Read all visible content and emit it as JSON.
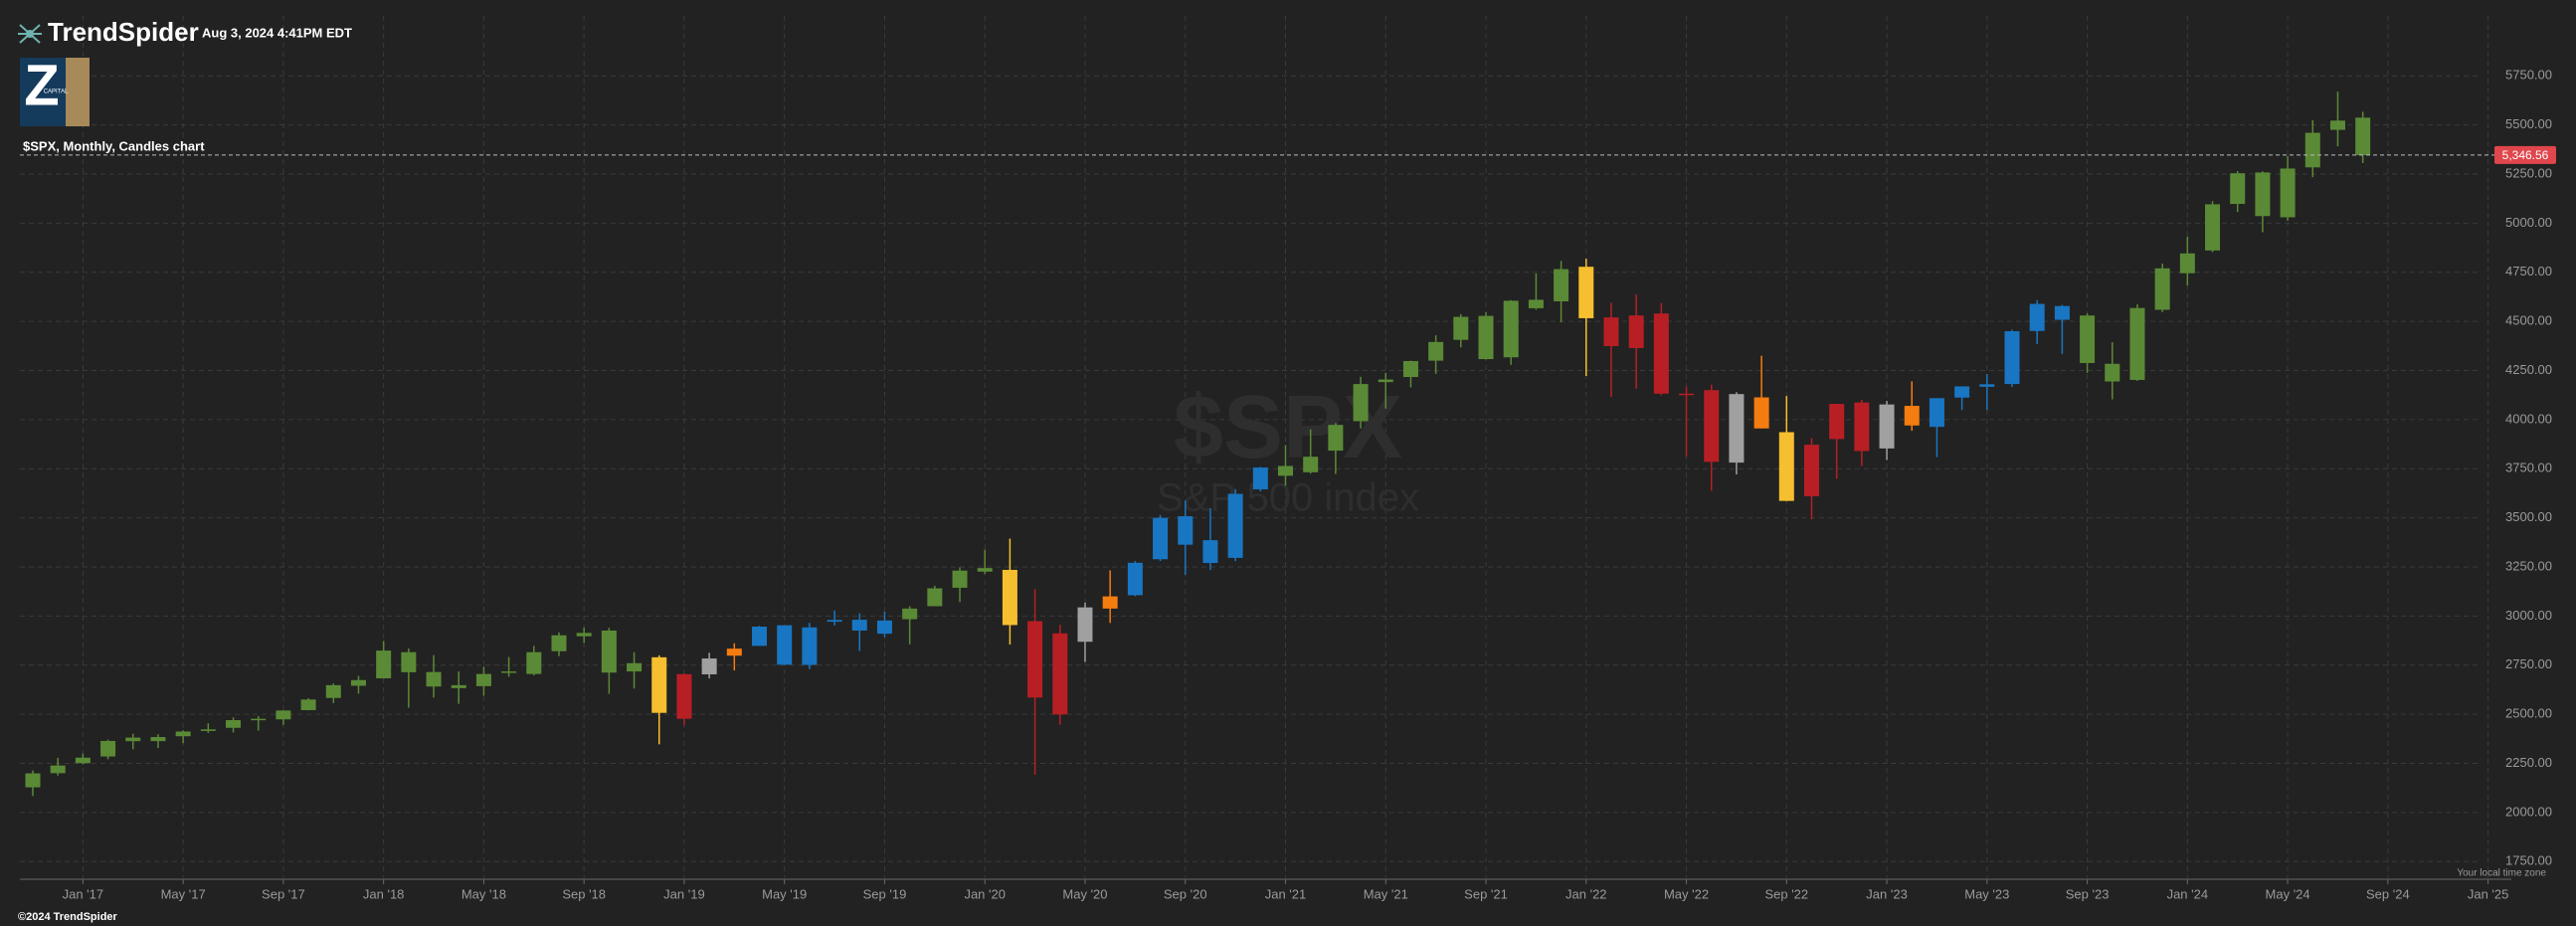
{
  "chart_data": {
    "type": "candlestick",
    "brand": "TrendSpider",
    "timestamp": "Aug 3, 2024 4:41PM EDT",
    "logo": {
      "letter": "Z",
      "text": "CAPITAL"
    },
    "title": "$SPX, Monthly, Candles chart",
    "watermark": "$SPX",
    "watermark_subtitle": "S&P 500 index",
    "timezone_note": "Your local time zone",
    "copyright": "©2024 TrendSpider",
    "last_price": {
      "value": 5346.56,
      "label": "5,346.56"
    },
    "last_price_color": "#e0464b",
    "grid": true,
    "categories": [
      null,
      null,
      "Jan '17",
      null,
      null,
      null,
      "May '17",
      null,
      null,
      null,
      "Sep '17",
      null,
      null,
      null,
      "Jan '18",
      null,
      null,
      null,
      "May '18",
      null,
      null,
      null,
      "Sep '18",
      null,
      null,
      null,
      "Jan '19",
      null,
      null,
      null,
      "May '19",
      null,
      null,
      null,
      "Sep '19",
      null,
      null,
      null,
      "Jan '20",
      null,
      null,
      null,
      "May '20",
      null,
      null,
      null,
      "Sep '20",
      null,
      null,
      null,
      "Jan '21",
      null,
      null,
      null,
      "May '21",
      null,
      null,
      null,
      "Sep '21",
      null,
      null,
      null,
      "Jan '22",
      null,
      null,
      null,
      "May '22",
      null,
      null,
      null,
      "Sep '22",
      null,
      null,
      null,
      "Jan '23",
      null,
      null,
      null,
      "May '23",
      null,
      null,
      null,
      "Sep '23",
      null,
      null,
      null,
      "Jan '24",
      null,
      null,
      null,
      "May '24",
      null,
      null,
      null,
      "Sep '24",
      null,
      null,
      null,
      "Jan '25"
    ],
    "candles": {
      "open": [
        2128,
        2200,
        2251,
        2285,
        2381,
        2363,
        2388,
        2415,
        2431,
        2477,
        2474,
        2521,
        2583,
        2645,
        2683,
        2816,
        2715,
        2633,
        2643,
        2718,
        2705,
        2821,
        2897,
        2926,
        2718,
        2790,
        2477,
        2703,
        2798,
        2848,
        2953,
        2751,
        2971,
        2981,
        2910,
        2984,
        3050,
        3144,
        3244,
        3235,
        2974,
        2499,
        2869,
        3038,
        3106,
        3289,
        3508,
        3386,
        3296,
        3645,
        3764,
        3732,
        3842,
        3992,
        4191,
        4217,
        4300,
        4406,
        4528,
        4317,
        4610,
        4602,
        4778,
        4520,
        4364,
        4540,
        4131,
        4150,
        3781,
        4113,
        3936,
        3610,
        3901,
        4087,
        3853,
        4070,
        3963,
        4112,
        4167,
        4181,
        4451,
        4578,
        4530,
        4284,
        4202,
        4559,
        4745,
        4861,
        5098,
        5258,
        5030,
        5284,
        5475,
        5537,
        null,
        null,
        null,
        null,
        null
      ],
      "high": [
        2214,
        2278,
        2301,
        2371,
        2401,
        2398,
        2418,
        2454,
        2484,
        2491,
        2520,
        2582,
        2657,
        2695,
        2873,
        2835,
        2801,
        2718,
        2742,
        2791,
        2848,
        2917,
        2941,
        2940,
        2816,
        2800,
        2708,
        2813,
        2861,
        2950,
        2954,
        2965,
        3028,
        3014,
        3022,
        3050,
        3154,
        3248,
        3338,
        3394,
        3137,
        2955,
        3068,
        3233,
        3280,
        3514,
        3588,
        3549,
        3646,
        3760,
        3870,
        3950,
        3983,
        4218,
        4238,
        4300,
        4429,
        4537,
        4546,
        4608,
        4744,
        4808,
        4819,
        4595,
        4637,
        4593,
        4169,
        4178,
        4140,
        4325,
        4120,
        3906,
        4080,
        4101,
        4095,
        4195,
        4110,
        4170,
        4232,
        4458,
        4608,
        4584,
        4541,
        4394,
        4587,
        4794,
        4932,
        5112,
        5265,
        5264,
        5342,
        5524,
        5670,
        5567,
        null,
        null,
        null,
        null,
        null
      ],
      "low": [
        2084,
        2188,
        2245,
        2271,
        2322,
        2328,
        2353,
        2405,
        2407,
        2417,
        2446,
        2520,
        2557,
        2605,
        2682,
        2533,
        2585,
        2553,
        2594,
        2691,
        2698,
        2796,
        2864,
        2604,
        2631,
        2347,
        2444,
        2682,
        2723,
        2848,
        2751,
        2729,
        2952,
        2822,
        2892,
        2856,
        3050,
        3071,
        3214,
        2855,
        2192,
        2447,
        2767,
        2965,
        3101,
        3280,
        3210,
        3234,
        3280,
        3634,
        3663,
        3725,
        3723,
        3955,
        4056,
        4164,
        4233,
        4368,
        4306,
        4279,
        4560,
        4495,
        4222,
        4115,
        4157,
        4124,
        3811,
        3637,
        3721,
        3955,
        3585,
        3492,
        3699,
        3764,
        3794,
        3943,
        3809,
        4049,
        4048,
        4166,
        4385,
        4335,
        4238,
        4103,
        4197,
        4547,
        4683,
        4853,
        5057,
        4954,
        5012,
        5234,
        5391,
        5306,
        null,
        null,
        null,
        null,
        null
      ],
      "close": [
        2199,
        2239,
        2279,
        2364,
        2363,
        2384,
        2412,
        2423,
        2470,
        2472,
        2519,
        2575,
        2648,
        2674,
        2824,
        2714,
        2641,
        2648,
        2705,
        2718,
        2816,
        2902,
        2914,
        2712,
        2760,
        2507,
        2704,
        2784,
        2834,
        2946,
        2752,
        2942,
        2980,
        2926,
        2977,
        3038,
        3141,
        3231,
        3226,
        2954,
        2585,
        2912,
        3044,
        3100,
        3271,
        3500,
        3363,
        3270,
        3622,
        3756,
        3714,
        3811,
        3973,
        4181,
        4204,
        4298,
        4395,
        4523,
        4308,
        4605,
        4567,
        4766,
        4516,
        4374,
        4530,
        4132,
        4132,
        3785,
        4130,
        3955,
        3586,
        3872,
        4080,
        3840,
        4077,
        3970,
        4109,
        4169,
        4180,
        4450,
        4589,
        4508,
        4288,
        4194,
        4568,
        4770,
        4846,
        5096,
        5254,
        5036,
        5278,
        5460,
        5522,
        5346.56,
        null,
        null,
        null,
        null,
        null
      ],
      "colors": [
        "#5b8a36",
        "#5b8a36",
        "#5b8a36",
        "#5b8a36",
        "#5b8a36",
        "#5b8a36",
        "#5b8a36",
        "#5b8a36",
        "#5b8a36",
        "#5b8a36",
        "#5b8a36",
        "#5b8a36",
        "#5b8a36",
        "#5b8a36",
        "#5b8a36",
        "#5b8a36",
        "#5b8a36",
        "#5b8a36",
        "#5b8a36",
        "#5b8a36",
        "#5b8a36",
        "#5b8a36",
        "#5b8a36",
        "#5b8a36",
        "#5b8a36",
        "#f6bf2f",
        "#b71f24",
        "#a0a0a0",
        "#f57c0f",
        "#1976c2",
        "#1976c2",
        "#1976c2",
        "#1976c2",
        "#1976c2",
        "#1976c2",
        "#5b8a36",
        "#5b8a36",
        "#5b8a36",
        "#5b8a36",
        "#f6bf2f",
        "#b71f24",
        "#b71f24",
        "#a0a0a0",
        "#f57c0f",
        "#1976c2",
        "#1976c2",
        "#1976c2",
        "#1976c2",
        "#1976c2",
        "#1976c2",
        "#5b8a36",
        "#5b8a36",
        "#5b8a36",
        "#5b8a36",
        "#5b8a36",
        "#5b8a36",
        "#5b8a36",
        "#5b8a36",
        "#5b8a36",
        "#5b8a36",
        "#5b8a36",
        "#5b8a36",
        "#f6bf2f",
        "#b71f24",
        "#b71f24",
        "#b71f24",
        "#b71f24",
        "#b71f24",
        "#a0a0a0",
        "#f57c0f",
        "#f6bf2f",
        "#b71f24",
        "#b71f24",
        "#b71f24",
        "#a0a0a0",
        "#f57c0f",
        "#1976c2",
        "#1976c2",
        "#1976c2",
        "#1976c2",
        "#1976c2",
        "#1976c2",
        "#5b8a36",
        "#5b8a36",
        "#5b8a36",
        "#5b8a36",
        "#5b8a36",
        "#5b8a36",
        "#5b8a36",
        "#5b8a36",
        "#5b8a36",
        "#5b8a36",
        "#5b8a36",
        "#5b8a36",
        null,
        null,
        null,
        null,
        null
      ]
    },
    "ylim": [
      1660,
      6055
    ],
    "yticks": [
      {
        "value": 1750,
        "label": "1750.00"
      },
      {
        "value": 2000,
        "label": "2000.00"
      },
      {
        "value": 2250,
        "label": "2250.00"
      },
      {
        "value": 2500,
        "label": "2500.00"
      },
      {
        "value": 2750,
        "label": "2750.00"
      },
      {
        "value": 3000,
        "label": "3000.00"
      },
      {
        "value": 3250,
        "label": "3250.00"
      },
      {
        "value": 3500,
        "label": "3500.00"
      },
      {
        "value": 3750,
        "label": "3750.00"
      },
      {
        "value": 4000,
        "label": "4000.00"
      },
      {
        "value": 4250,
        "label": "4250.00"
      },
      {
        "value": 4500,
        "label": "4500.00"
      },
      {
        "value": 4750,
        "label": "4750.00"
      },
      {
        "value": 5000,
        "label": "5000.00"
      },
      {
        "value": 5250,
        "label": "5250.00"
      },
      {
        "value": 5500,
        "label": "5500.00"
      },
      {
        "value": 5750,
        "label": "5750.00"
      }
    ]
  }
}
